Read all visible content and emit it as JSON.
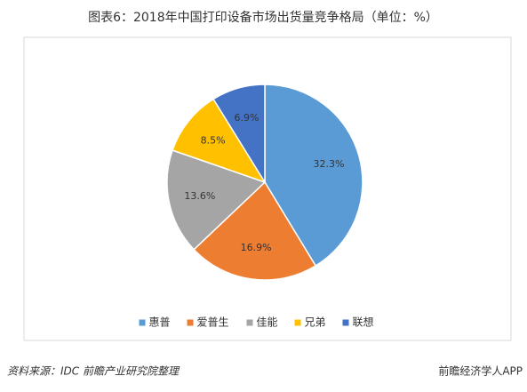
{
  "chart_data": {
    "type": "pie",
    "title": "图表6：2018年中国打印设备市场出货量竞争格局（单位：%）",
    "categories": [
      "惠普",
      "爱普生",
      "佳能",
      "兄弟",
      "联想"
    ],
    "values": [
      32.3,
      16.9,
      13.6,
      8.5,
      6.9
    ],
    "value_labels": [
      "32.3%",
      "16.9%",
      "13.6%",
      "8.5%",
      "6.9%"
    ],
    "colors": [
      "#5b9bd5",
      "#ed7d31",
      "#a5a5a5",
      "#ffc000",
      "#4472c4"
    ],
    "legend": "bottom"
  },
  "source": "资料来源：IDC 前瞻产业研究院整理",
  "brand": "前瞻经济学人APP"
}
